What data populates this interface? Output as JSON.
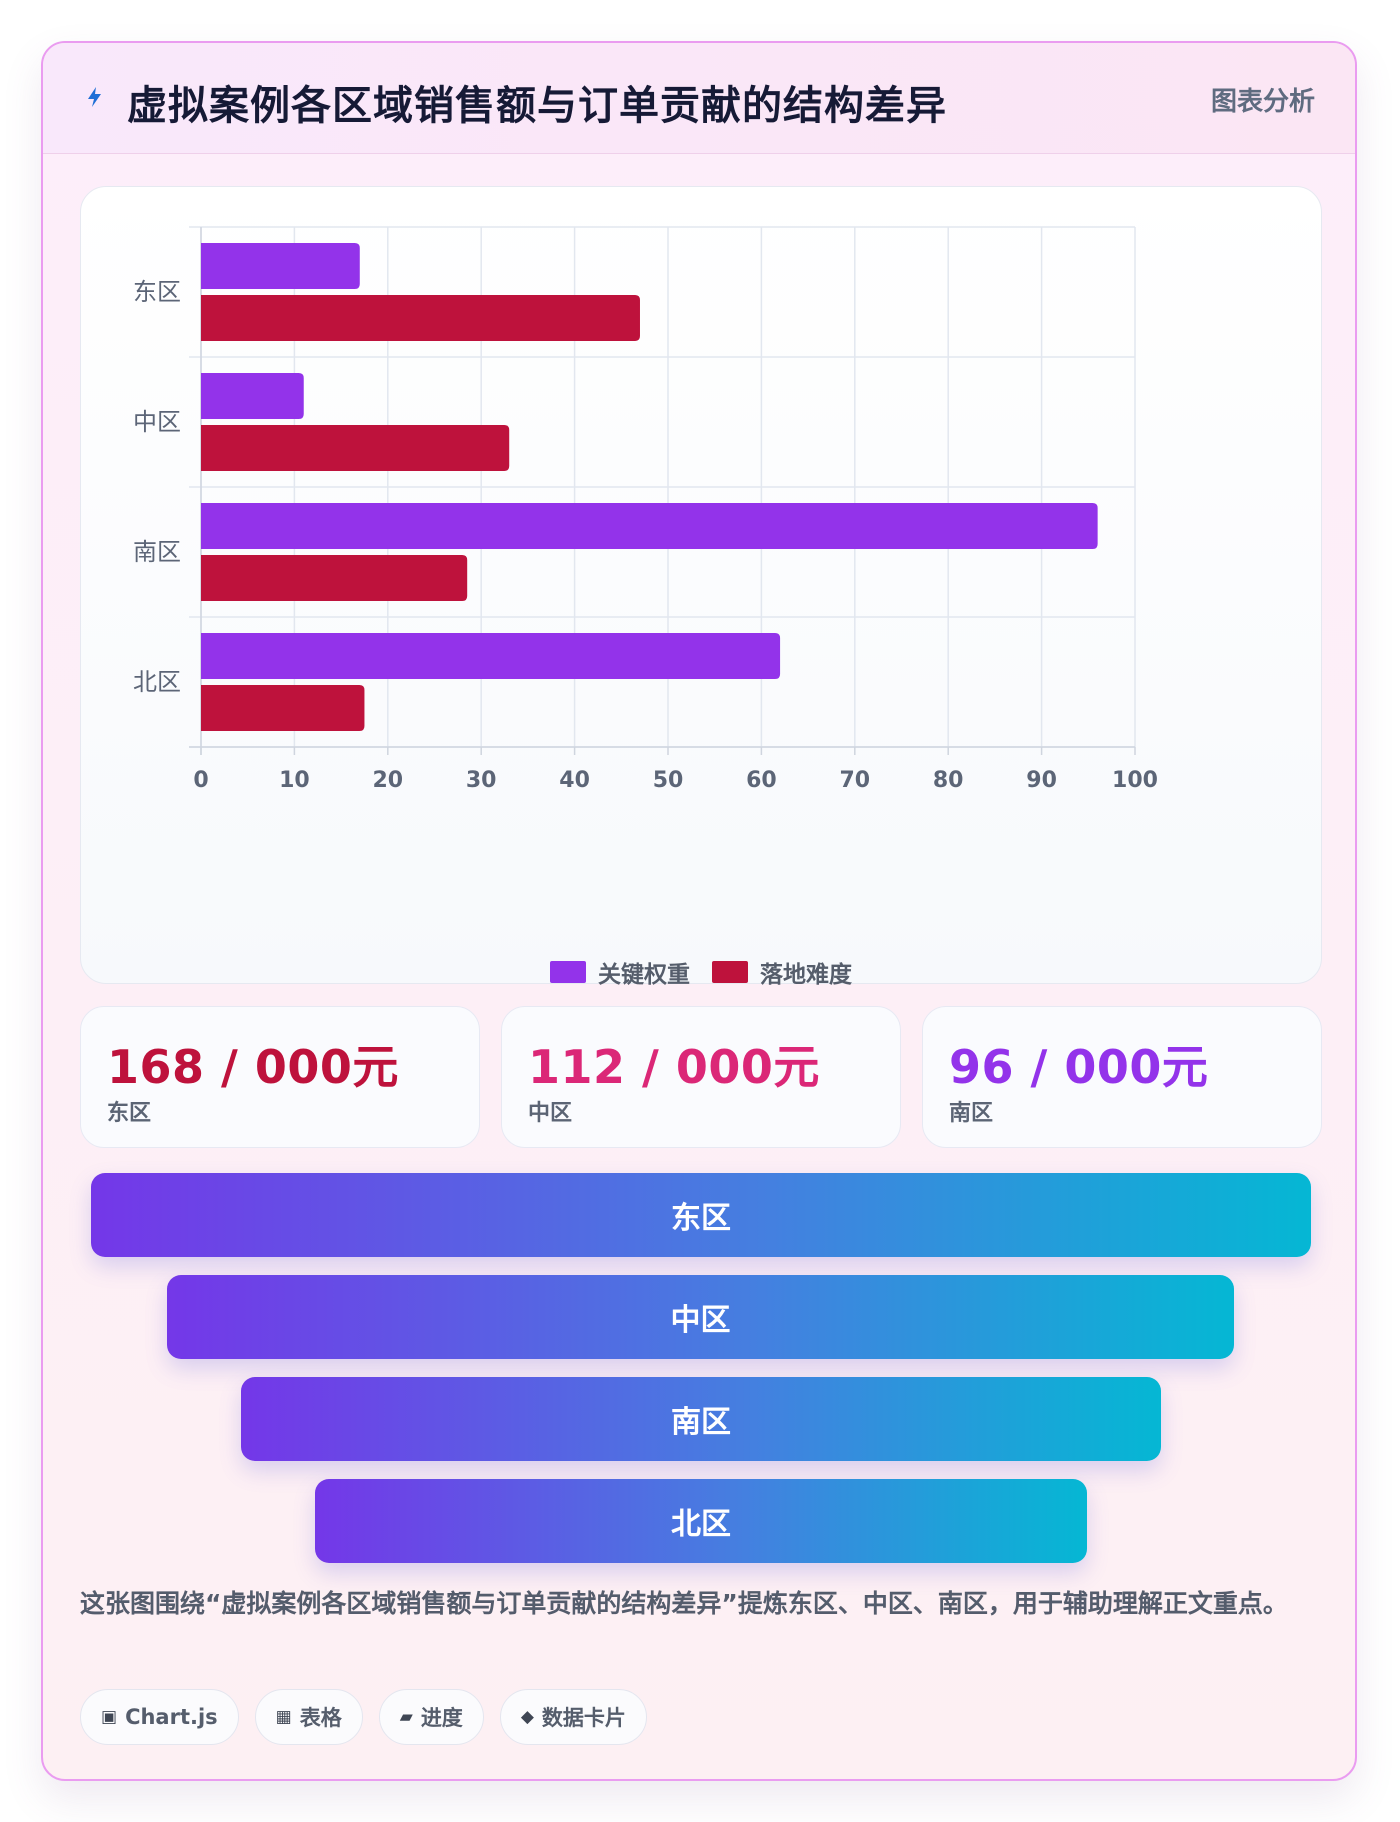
{
  "header": {
    "title": "虚拟案例各区域销售额与订单贡献的结构差异",
    "tag": "图表分析",
    "icon": "lightning-icon"
  },
  "chart_data": {
    "type": "bar",
    "orientation": "horizontal",
    "categories": [
      "东区",
      "中区",
      "南区",
      "北区"
    ],
    "series": [
      {
        "name": "关键权重",
        "values": [
          17,
          11,
          96,
          62
        ],
        "color": "#9333ea"
      },
      {
        "name": "落地难度",
        "values": [
          47,
          33,
          28.5,
          17.5
        ],
        "color": "#be123c"
      }
    ],
    "xlim": [
      0,
      100
    ],
    "xticks": [
      "0",
      "10",
      "20",
      "30",
      "40",
      "50",
      "60",
      "70",
      "80",
      "90",
      "100"
    ],
    "grid": true,
    "legend": "bottom"
  },
  "stats": [
    {
      "value": "168 / 000元",
      "label": "东区",
      "color": "#be123c"
    },
    {
      "value": "112 / 000元",
      "label": "中区",
      "color": "#db2777"
    },
    {
      "value": "96 / 000元",
      "label": "南区",
      "color": "#9333ea"
    }
  ],
  "funnel": [
    "东区",
    "中区",
    "南区",
    "北区"
  ],
  "summary": "这张图围绕“虚拟案例各区域销售额与订单贡献的结构差异”提炼东区、中区、南区，用于辅助理解正文重点。",
  "tags": [
    {
      "icon": "▣",
      "label": "Chart.js"
    },
    {
      "icon": "▦",
      "label": "表格"
    },
    {
      "icon": "▰",
      "label": "进度"
    },
    {
      "icon": "◆",
      "label": "数据卡片"
    }
  ]
}
